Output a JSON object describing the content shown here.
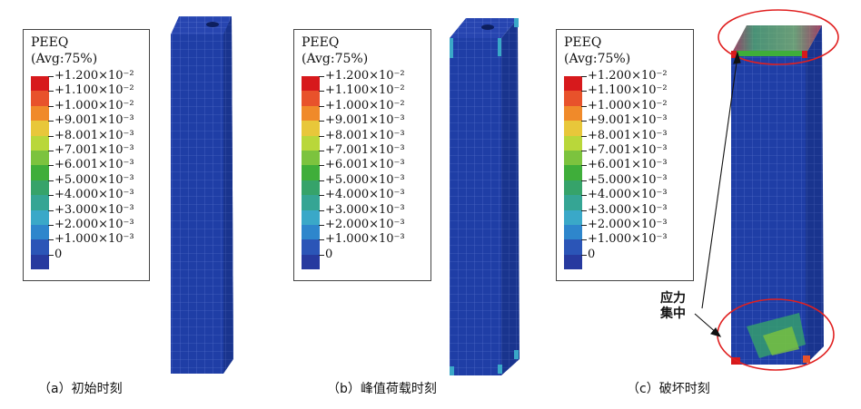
{
  "legend": {
    "title": "PEEQ",
    "subtitle": "(Avg:75%)",
    "labels": [
      "+1.200×10⁻²",
      "+1.100×10⁻²",
      "+1.000×10⁻²",
      "+9.001×10⁻³",
      "+8.001×10⁻³",
      "+7.001×10⁻³",
      "+6.001×10⁻³",
      "+5.000×10⁻³",
      "+4.000×10⁻³",
      "+3.000×10⁻³",
      "+2.000×10⁻³",
      "+1.000×10⁻³",
      "0"
    ],
    "colors": [
      "#d7191c",
      "#e8522b",
      "#f08a2a",
      "#e8c73a",
      "#b9d73a",
      "#7cc33e",
      "#3fae3a",
      "#36a36a",
      "#35a594",
      "#3aa8c8",
      "#2e86cc",
      "#2b55b7",
      "#273a9f"
    ]
  },
  "panels": [
    {
      "caption": "（a）初始时刻"
    },
    {
      "caption": "（b）峰值荷载时刻"
    },
    {
      "caption": "（c）破坏时刻"
    }
  ],
  "annotation": {
    "line1": "应力",
    "line2": "集中"
  },
  "colors": {
    "mesh": "#1f3ea6",
    "mesh_dark": "#162f85",
    "grid": "#4a66c4",
    "ellipse": "#e02020"
  }
}
